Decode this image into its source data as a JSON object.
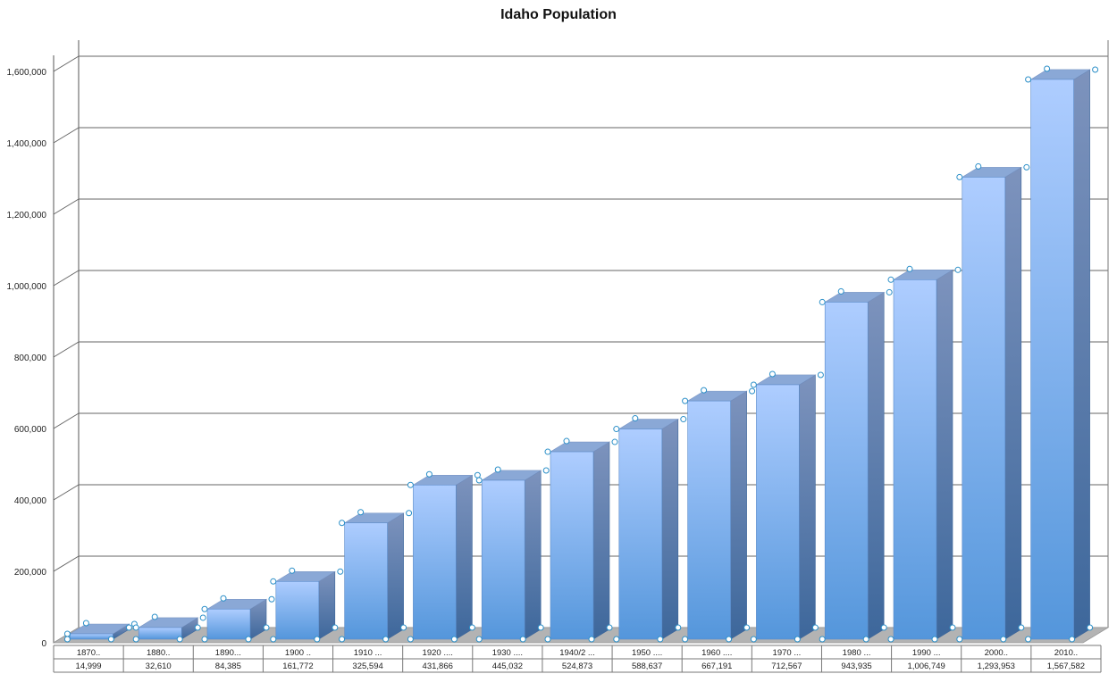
{
  "chart_data": {
    "type": "bar",
    "title": "Idaho Population",
    "xlabel": "",
    "ylabel": "",
    "ylim": [
      0,
      1600000
    ],
    "yticks": [
      "0",
      "200,000",
      "400,000",
      "600,000",
      "800,000",
      "1,000,000",
      "1,200,000",
      "1,400,000",
      "1,600,000"
    ],
    "categories": [
      "1870..",
      "1880..",
      "1890...",
      "1900 ..",
      "1910 ...",
      "1920 ....",
      "1930 ....",
      "1940/2 ...",
      "1950 ....",
      "1960 ....",
      "1970 ...",
      "1980 ...",
      "1990 ...",
      "2000..",
      "2010.."
    ],
    "values": [
      14999,
      32610,
      84385,
      161772,
      325594,
      431866,
      445032,
      524873,
      588637,
      667191,
      712567,
      943935,
      1006749,
      1293953,
      1567582
    ],
    "value_labels": [
      "14,999",
      "32,610",
      "84,385",
      "161,772",
      "325,594",
      "431,866",
      "445,032",
      "524,873",
      "588,637",
      "667,191",
      "712,567",
      "943,935",
      "1,006,749",
      "1,293,953",
      "1,567,582"
    ],
    "grid": true,
    "legend": "none",
    "style": "3d-column",
    "colors": {
      "front_top": "#aecdff",
      "front_bottom": "#5496db",
      "side": "#3f6fa3",
      "top": "#8aa8d6",
      "floor": "#b3b3b3",
      "handle": "#2b8fc8"
    }
  }
}
